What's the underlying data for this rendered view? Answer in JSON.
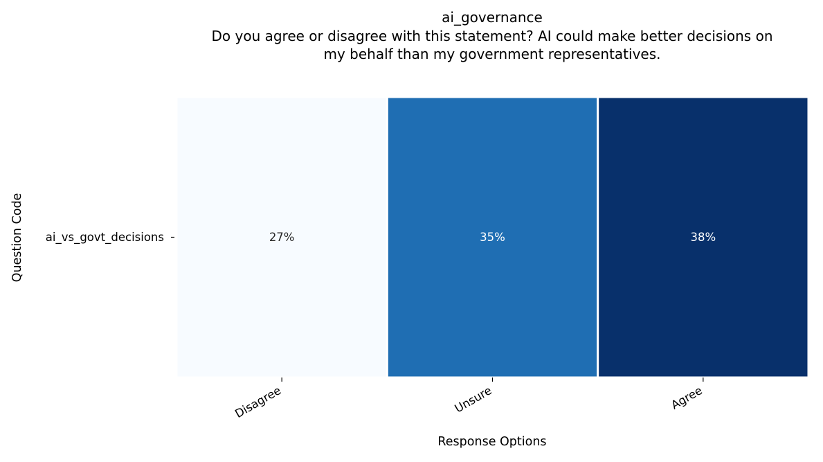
{
  "chart_data": {
    "type": "heatmap",
    "title": "ai_governance",
    "subtitle_lines": [
      "Do you agree or disagree with this statement? AI could make better decisions on",
      "my behalf than my government representatives."
    ],
    "xlabel": "Response Options",
    "ylabel": "Question Code",
    "x_categories": [
      "Disagree",
      "Unsure",
      "Agree"
    ],
    "y_categories": [
      "ai_vs_govt_decisions"
    ],
    "values": [
      [
        27,
        35,
        38
      ]
    ],
    "value_labels": [
      [
        "27%",
        "35%",
        "38%"
      ]
    ],
    "colormap": "Blues",
    "cell_colors": [
      [
        "#f7fbff",
        "#1f6eb3",
        "#08306b"
      ]
    ],
    "label_colors": [
      [
        "#262626",
        "#ffffff",
        "#ffffff"
      ]
    ],
    "cell_border_color": "#ffffff",
    "grid": false,
    "legend": "none"
  }
}
